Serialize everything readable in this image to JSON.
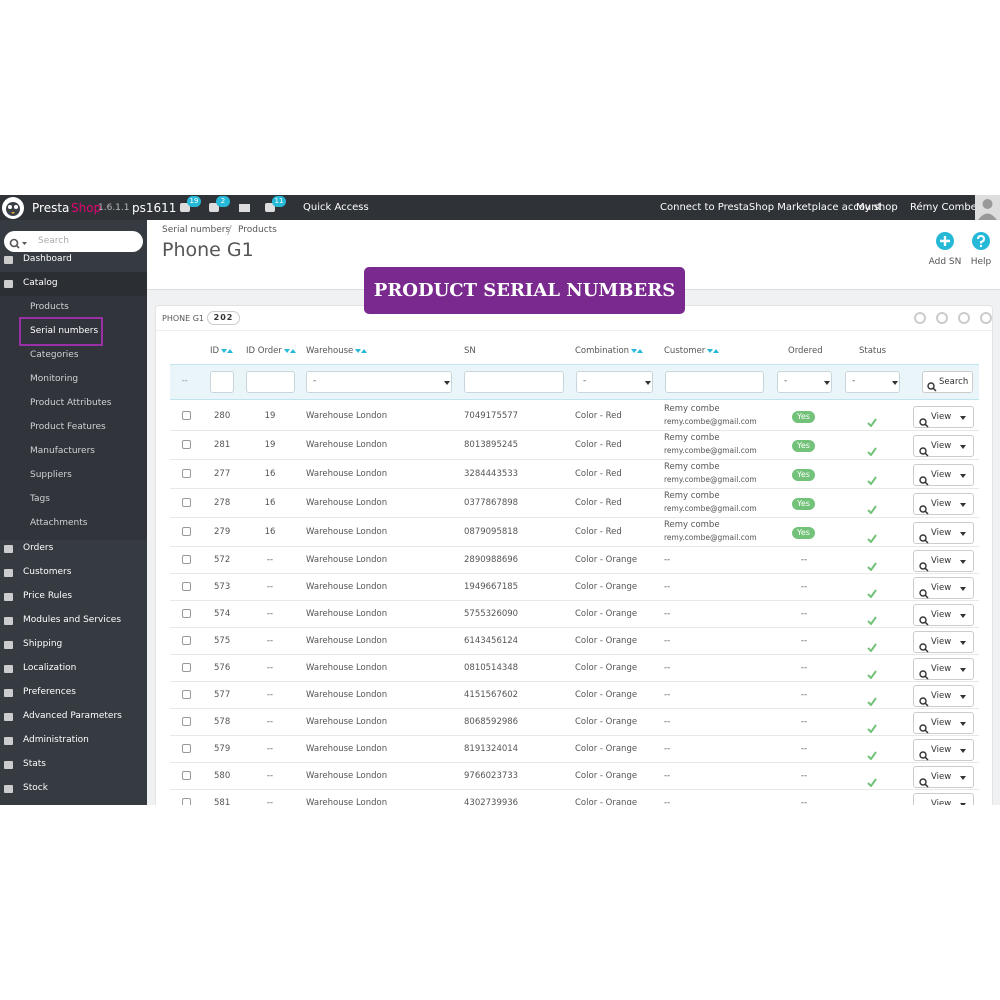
{
  "topbar": {
    "brand_a": "Presta",
    "brand_b": "Shop",
    "version": "1.6.1.1",
    "shop": "ps1611",
    "badges": [
      "19",
      "2",
      "11"
    ],
    "quick_access": "Quick Access",
    "connect": "Connect to PrestaShop Marketplace account",
    "my_shop": "My shop",
    "user": "Rémy Combe"
  },
  "sidebar": {
    "search": "Search",
    "menu": [
      {
        "label": "Dashboard"
      },
      {
        "label": "Catalog",
        "children": [
          "Products",
          "Serial numbers",
          "Categories",
          "Monitoring",
          "Product Attributes",
          "Product Features",
          "Manufacturers",
          "Suppliers",
          "Tags",
          "Attachments"
        ]
      },
      {
        "label": "Orders"
      },
      {
        "label": "Customers"
      },
      {
        "label": "Price Rules"
      },
      {
        "label": "Modules and Services"
      },
      {
        "label": "Shipping"
      },
      {
        "label": "Localization"
      },
      {
        "label": "Preferences"
      },
      {
        "label": "Advanced Parameters"
      },
      {
        "label": "Administration"
      },
      {
        "label": "Stats"
      },
      {
        "label": "Stock"
      }
    ]
  },
  "header": {
    "breadcrumb": [
      "Serial numbers",
      "Products"
    ],
    "title": "Phone G1",
    "buttons": [
      "Add SN",
      "Help"
    ]
  },
  "banner": "PRODUCT SERIAL NUMBERS",
  "panel": {
    "title": "PHONE G1",
    "count": "202"
  },
  "table": {
    "columns": [
      "ID",
      "ID Order",
      "Warehouse",
      "SN",
      "Combination",
      "Customer",
      "Ordered",
      "Status"
    ],
    "filters": {
      "bulk": "--",
      "select": "-",
      "search": "Search"
    },
    "view": "View",
    "rows": [
      {
        "id": "280",
        "order": "19",
        "warehouse": "Warehouse London",
        "sn": "7049175577",
        "combination": "Color - Red",
        "customer": "Remy combe",
        "email": "remy.combe@gmail.com",
        "ordered": "Yes"
      },
      {
        "id": "281",
        "order": "19",
        "warehouse": "Warehouse London",
        "sn": "8013895245",
        "combination": "Color - Red",
        "customer": "Remy combe",
        "email": "remy.combe@gmail.com",
        "ordered": "Yes"
      },
      {
        "id": "277",
        "order": "16",
        "warehouse": "Warehouse London",
        "sn": "3284443533",
        "combination": "Color - Red",
        "customer": "Remy combe",
        "email": "remy.combe@gmail.com",
        "ordered": "Yes"
      },
      {
        "id": "278",
        "order": "16",
        "warehouse": "Warehouse London",
        "sn": "0377867898",
        "combination": "Color - Red",
        "customer": "Remy combe",
        "email": "remy.combe@gmail.com",
        "ordered": "Yes"
      },
      {
        "id": "279",
        "order": "16",
        "warehouse": "Warehouse London",
        "sn": "0879095818",
        "combination": "Color - Red",
        "customer": "Remy combe",
        "email": "remy.combe@gmail.com",
        "ordered": "Yes"
      },
      {
        "id": "572",
        "order": "--",
        "warehouse": "Warehouse London",
        "sn": "2890988696",
        "combination": "Color - Orange",
        "customer": "--",
        "ordered": "--"
      },
      {
        "id": "573",
        "order": "--",
        "warehouse": "Warehouse London",
        "sn": "1949667185",
        "combination": "Color - Orange",
        "customer": "--",
        "ordered": "--"
      },
      {
        "id": "574",
        "order": "--",
        "warehouse": "Warehouse London",
        "sn": "5755326090",
        "combination": "Color - Orange",
        "customer": "--",
        "ordered": "--"
      },
      {
        "id": "575",
        "order": "--",
        "warehouse": "Warehouse London",
        "sn": "6143456124",
        "combination": "Color - Orange",
        "customer": "--",
        "ordered": "--"
      },
      {
        "id": "576",
        "order": "--",
        "warehouse": "Warehouse London",
        "sn": "0810514348",
        "combination": "Color - Orange",
        "customer": "--",
        "ordered": "--"
      },
      {
        "id": "577",
        "order": "--",
        "warehouse": "Warehouse London",
        "sn": "4151567602",
        "combination": "Color - Orange",
        "customer": "--",
        "ordered": "--"
      },
      {
        "id": "578",
        "order": "--",
        "warehouse": "Warehouse London",
        "sn": "8068592986",
        "combination": "Color - Orange",
        "customer": "--",
        "ordered": "--"
      },
      {
        "id": "579",
        "order": "--",
        "warehouse": "Warehouse London",
        "sn": "8191324014",
        "combination": "Color - Orange",
        "customer": "--",
        "ordered": "--"
      },
      {
        "id": "580",
        "order": "--",
        "warehouse": "Warehouse London",
        "sn": "9766023733",
        "combination": "Color - Orange",
        "customer": "--",
        "ordered": "--"
      },
      {
        "id": "581",
        "order": "--",
        "warehouse": "Warehouse London",
        "sn": "4302739936",
        "combination": "Color - Orange",
        "customer": "--",
        "ordered": "--"
      }
    ]
  }
}
